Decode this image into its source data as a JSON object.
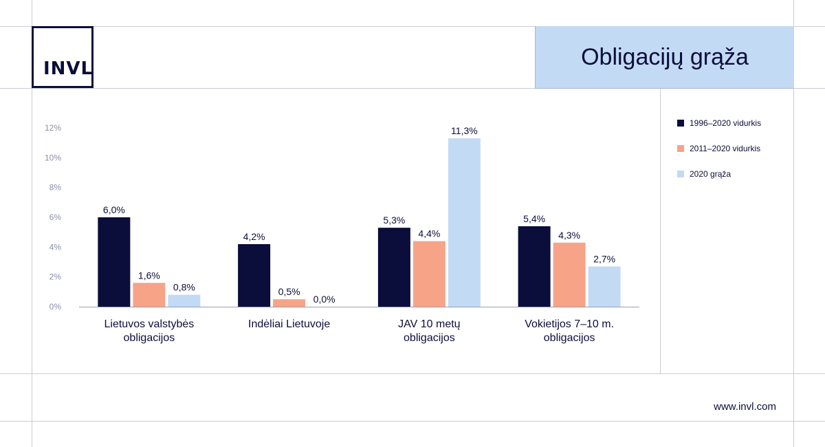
{
  "brand": {
    "logo_text": "INVL",
    "url": "www.invl.com"
  },
  "colors": {
    "navy": "#0b0d3a",
    "salmon": "#f7a388",
    "lightblue": "#c3daf5"
  },
  "chart_data": {
    "type": "bar",
    "title": "Obligacijų grąža",
    "xlabel": "",
    "ylabel": "",
    "ylim": [
      0,
      12
    ],
    "yticks": [
      "0%",
      "2%",
      "4%",
      "6%",
      "8%",
      "10%",
      "12%"
    ],
    "categories": [
      [
        "Lietuvos valstybės",
        "obligacijos"
      ],
      [
        "Indėliai Lietuvoje"
      ],
      [
        "JAV 10 metų",
        "obligacijos"
      ],
      [
        "Vokietijos 7–10 m.",
        "obligacijos"
      ]
    ],
    "series": [
      {
        "name": "1996–2020 vidurkis",
        "color": "#0b0d3a",
        "values": [
          6.0,
          4.2,
          5.3,
          5.4
        ],
        "labels": [
          "6,0%",
          "4,2%",
          "5,3%",
          "5,4%"
        ]
      },
      {
        "name": "2011–2020 vidurkis",
        "color": "#f7a388",
        "values": [
          1.6,
          0.5,
          4.4,
          4.3
        ],
        "labels": [
          "1,6%",
          "0,5%",
          "4,4%",
          "4,3%"
        ]
      },
      {
        "name": "2020 grąža",
        "color": "#c3daf5",
        "values": [
          0.8,
          0.0,
          11.3,
          2.7
        ],
        "labels": [
          "0,8%",
          "0,0%",
          "11,3%",
          "2,7%"
        ]
      }
    ],
    "grid": false,
    "legend": "right"
  }
}
